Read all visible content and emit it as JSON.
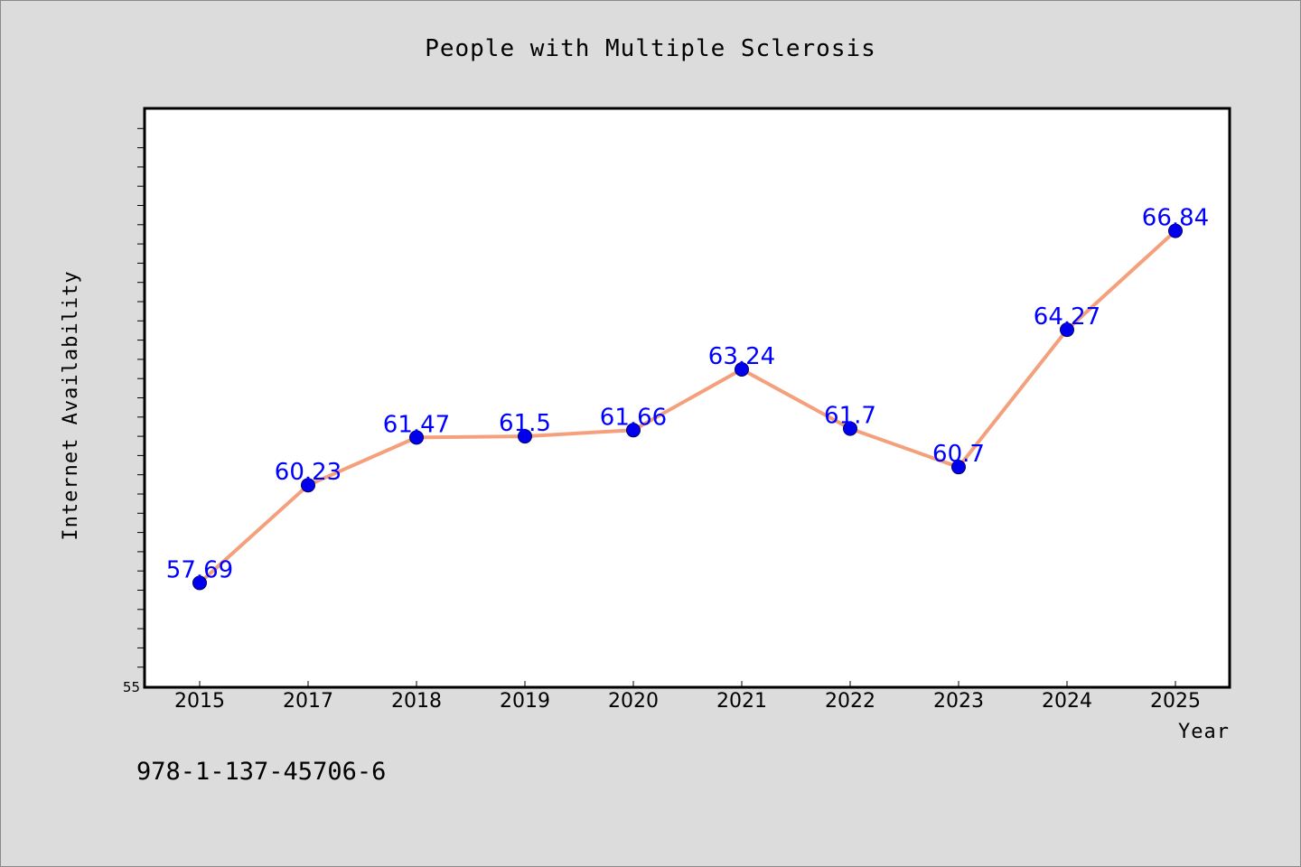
{
  "chart_data": {
    "type": "line",
    "title": "People with Multiple Sclerosis",
    "xlabel": "Year",
    "ylabel": "Internet Availability",
    "categories": [
      "2015",
      "2017",
      "2018",
      "2019",
      "2020",
      "2021",
      "2022",
      "2023",
      "2024",
      "2025"
    ],
    "values": [
      57.69,
      60.23,
      61.47,
      61.5,
      61.66,
      63.24,
      61.7,
      60.7,
      64.27,
      66.84
    ],
    "data_labels": [
      "57.69",
      "60.23",
      "61.47",
      "61.5",
      "61.66",
      "63.24",
      "61.7",
      "60.7",
      "64.27",
      "66.84"
    ],
    "ylim": [
      55,
      70
    ],
    "yticks": [
      55
    ],
    "ytick_labels": [
      "55"
    ],
    "grid": false,
    "legend": "none"
  },
  "footer": {
    "text": "978-1-137-45706-6"
  },
  "colors": {
    "background": "#dcdcdc",
    "plot_background": "#ffffff",
    "line": "#f4a07c",
    "marker": "#0000ee",
    "label": "#0000ff",
    "frame": "#000000"
  }
}
